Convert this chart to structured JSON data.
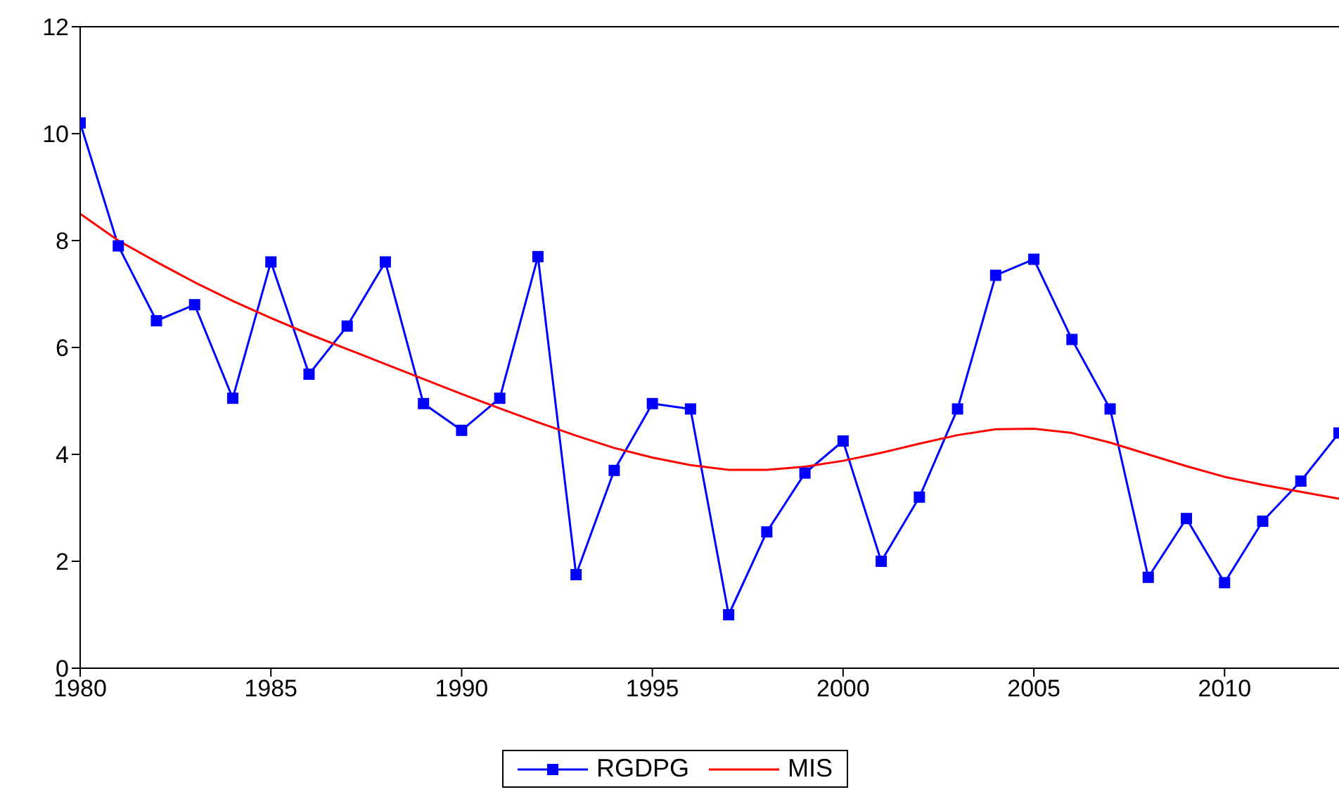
{
  "chart_data": {
    "type": "line",
    "x": [
      1980,
      1981,
      1982,
      1983,
      1984,
      1985,
      1986,
      1987,
      1988,
      1989,
      1990,
      1991,
      1992,
      1993,
      1994,
      1995,
      1996,
      1997,
      1998,
      1999,
      2000,
      2001,
      2002,
      2003,
      2004,
      2005,
      2006,
      2007,
      2008,
      2009,
      2010,
      2011,
      2012,
      2013
    ],
    "series": [
      {
        "name": "RGDPG",
        "color": "#0000ff",
        "marker": "square",
        "values": [
          10.2,
          7.9,
          6.5,
          6.8,
          5.05,
          7.6,
          5.5,
          6.4,
          7.6,
          4.95,
          4.45,
          5.05,
          7.7,
          1.75,
          3.7,
          4.95,
          4.85,
          1.0,
          2.55,
          3.65,
          4.25,
          2.0,
          3.2,
          4.85,
          7.35,
          7.65,
          6.15,
          4.85,
          1.7,
          2.8,
          1.6,
          2.75,
          3.5,
          4.4
        ]
      },
      {
        "name": "MIS",
        "color": "#ff0000",
        "marker": "none",
        "values": [
          8.5,
          8.0,
          7.6,
          7.22,
          6.87,
          6.55,
          6.25,
          5.97,
          5.69,
          5.41,
          5.13,
          4.86,
          4.6,
          4.35,
          4.12,
          3.94,
          3.8,
          3.71,
          3.71,
          3.77,
          3.88,
          4.03,
          4.2,
          4.36,
          4.47,
          4.48,
          4.4,
          4.22,
          4.0,
          3.78,
          3.58,
          3.43,
          3.3,
          3.17
        ]
      }
    ],
    "xlim": [
      1980,
      2013
    ],
    "xticks": [
      1980,
      1985,
      1990,
      1995,
      2000,
      2005,
      2010
    ],
    "ylim": [
      0,
      12
    ],
    "yticks": [
      0,
      2,
      4,
      6,
      8,
      10,
      12
    ],
    "grid": false,
    "legend": "bottom",
    "line_style": "solid"
  }
}
